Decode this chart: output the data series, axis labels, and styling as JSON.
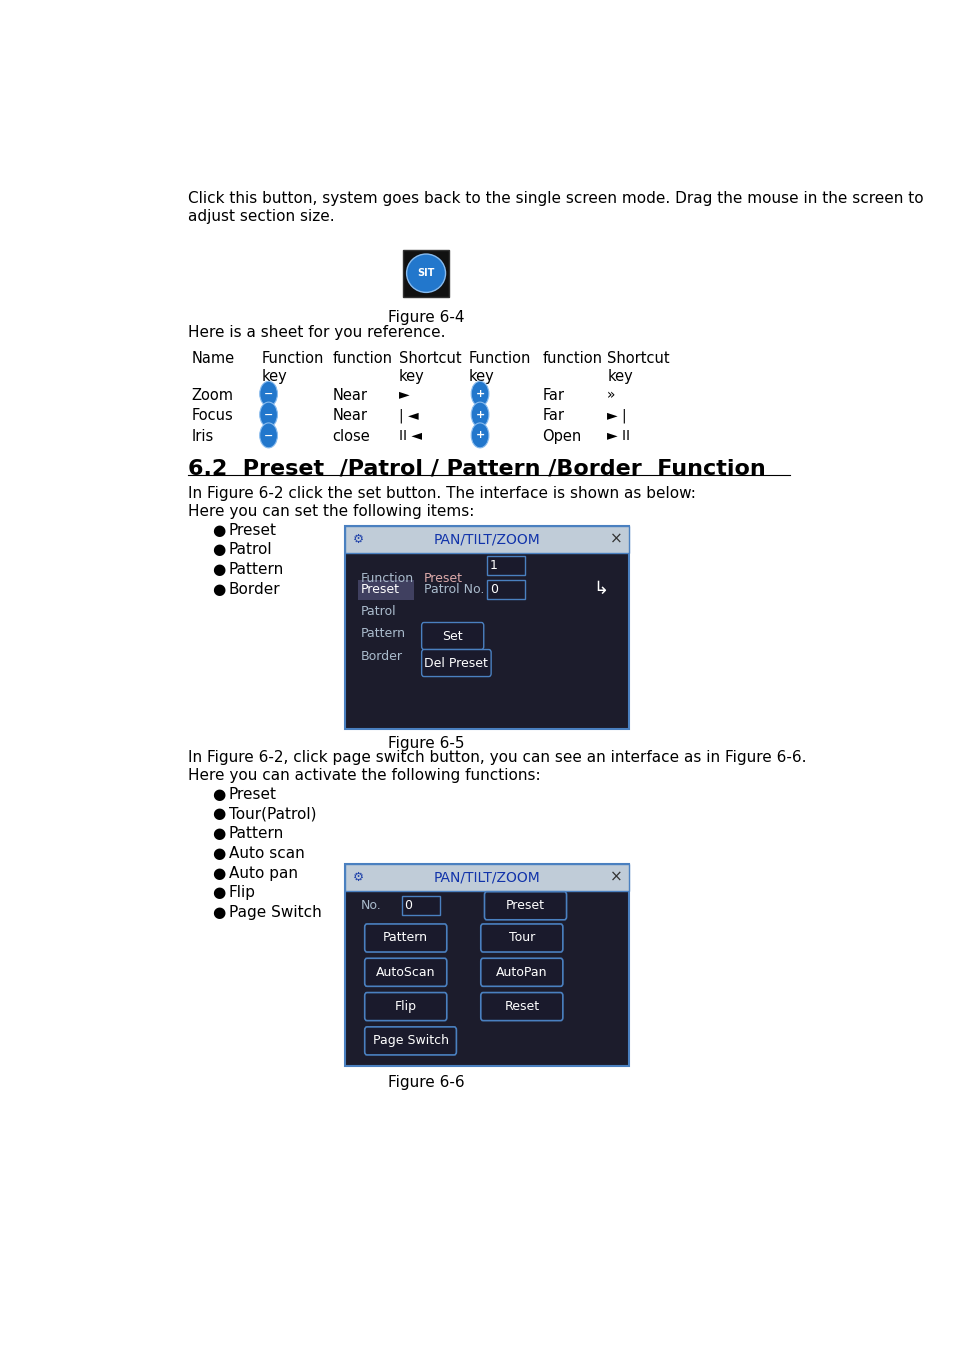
{
  "page_text": {
    "para1": "Click this button, system goes back to the single screen mode. Drag the mouse in the screen to\nadjust section size.",
    "fig4_label": "Figure 6-4",
    "sheet_intro": "Here is a sheet for you reference.",
    "section_title": "6.2  Preset  /Patrol / Pattern /Border  Function",
    "para2": "In Figure 6-2 click the set button. The interface is shown as below:",
    "para3": "Here you can set the following items:",
    "bullets1": [
      "Preset",
      "Patrol",
      "Pattern",
      "Border"
    ],
    "fig5_label": "Figure 6-5",
    "para4": "In Figure 6-2, click page switch button, you can see an interface as in Figure 6-6.",
    "para5": "Here you can activate the following functions:",
    "bullets2": [
      "Preset",
      "Tour(Patrol)",
      "Pattern",
      "Auto scan",
      "Auto pan",
      "Flip",
      "Page Switch"
    ],
    "fig6_label": "Figure 6-6"
  },
  "colors": {
    "background": "#ffffff",
    "dialog_bg": "#1c1c2c",
    "dialog_border": "#4a80c0",
    "dialog_titlebar": "#c0ccd8",
    "dialog_title_text": "#1133aa",
    "button_border": "#4a80c0",
    "label_text": "#aabbcc",
    "highlight_row": "#404060"
  }
}
